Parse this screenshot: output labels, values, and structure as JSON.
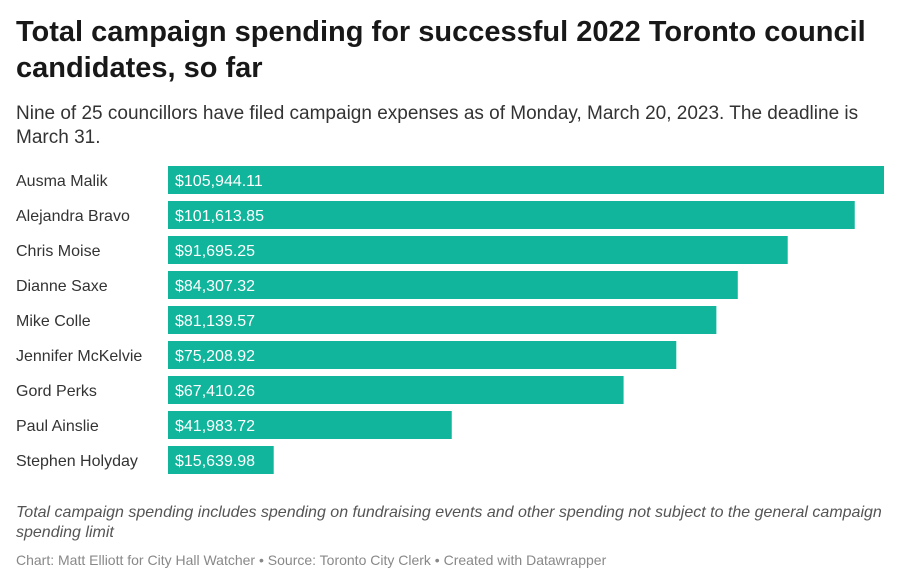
{
  "title": "Total campaign spending for successful 2022 Toronto council candidates, so far",
  "subtitle": "Nine of 25 councillors have filed campaign expenses as of Monday, March 20, 2023. The deadline is March 31.",
  "notes": "Total campaign spending includes spending on fundraising events and other spending not subject to the general campaign spending limit",
  "footer": {
    "chart_credit": "Chart: Matt Elliott for City Hall Watcher",
    "separator": " • ",
    "source": "Source: Toronto City Clerk",
    "created_with": "Created with Datawrapper"
  },
  "colors": {
    "bar": "#10b59b"
  },
  "chart_data": {
    "type": "bar",
    "orientation": "horizontal",
    "title": "Total campaign spending for successful 2022 Toronto council candidates, so far",
    "categories": [
      "Ausma Malik",
      "Alejandra Bravo",
      "Chris Moise",
      "Dianne Saxe",
      "Mike Colle",
      "Jennifer McKelvie",
      "Gord Perks",
      "Paul Ainslie",
      "Stephen Holyday"
    ],
    "values": [
      105944.11,
      101613.85,
      91695.25,
      84307.32,
      81139.57,
      75208.92,
      67410.26,
      41983.72,
      15639.98
    ],
    "value_labels": [
      "$105,944.11",
      "$101,613.85",
      "$91,695.25",
      "$84,307.32",
      "$81,139.57",
      "$75,208.92",
      "$67,410.26",
      "$41,983.72",
      "$15,639.98"
    ],
    "xlim": [
      0,
      105944.11
    ],
    "grid": false,
    "legend": false
  }
}
